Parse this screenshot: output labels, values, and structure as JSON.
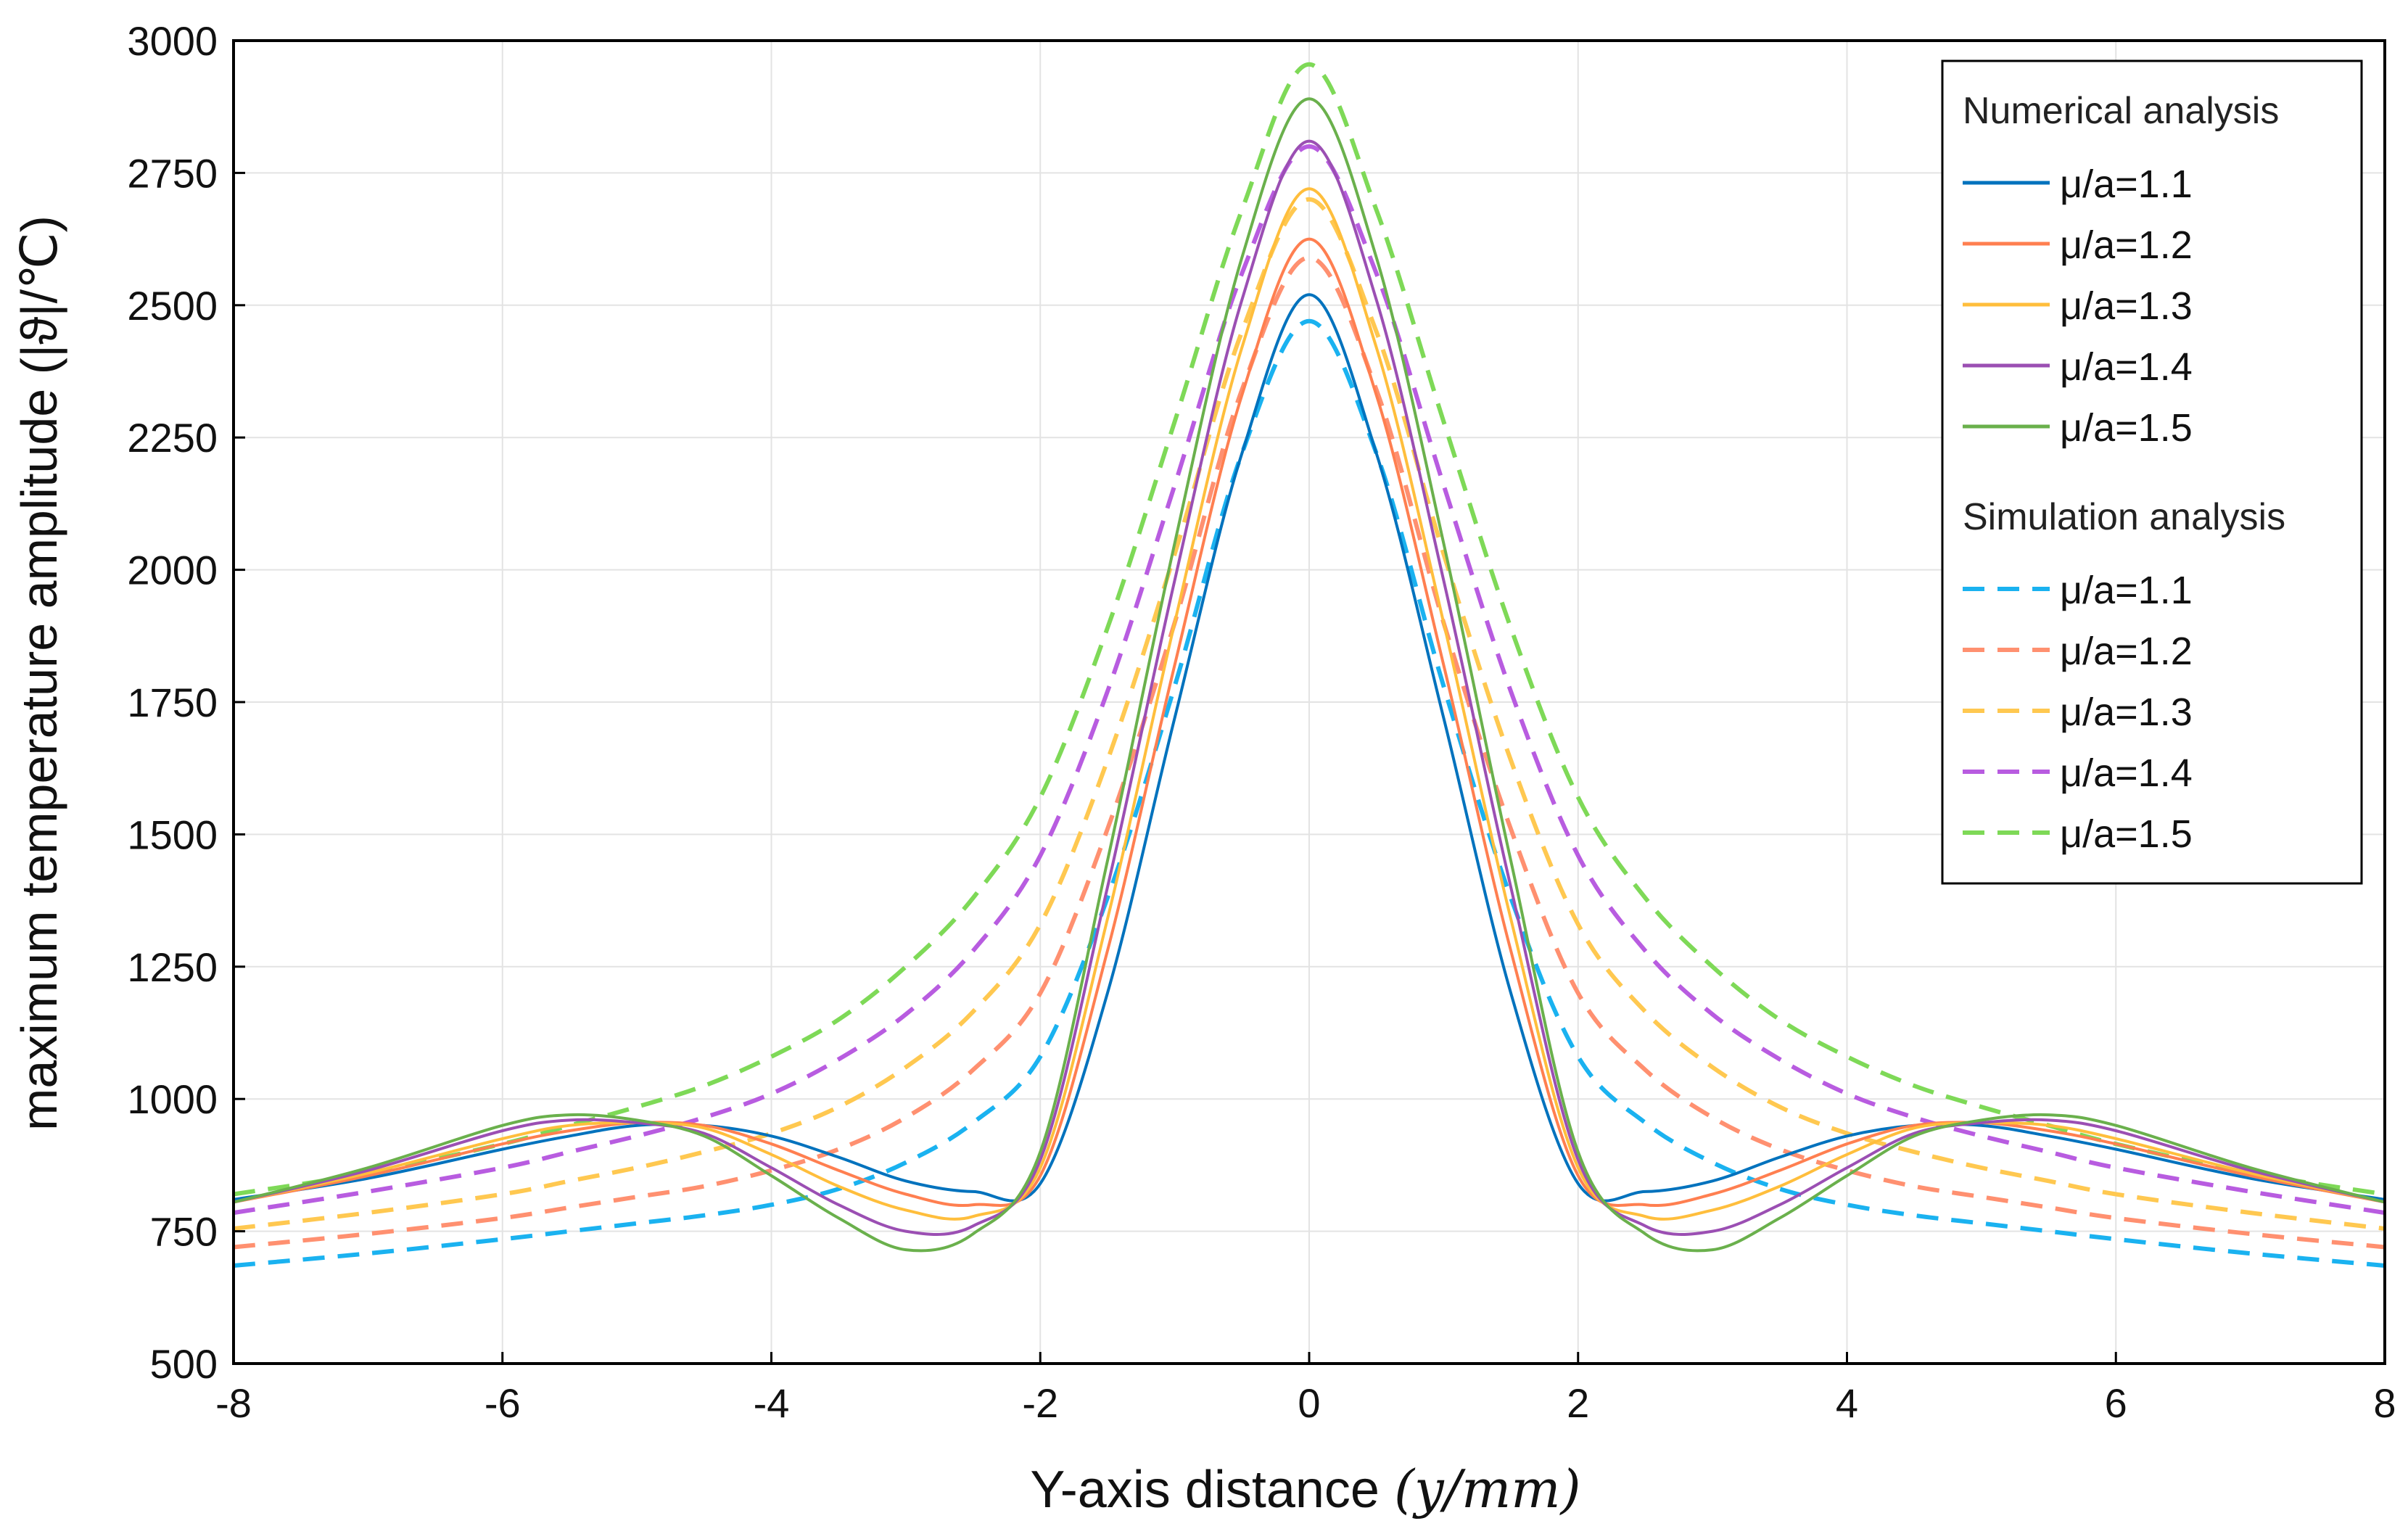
{
  "chart_data": {
    "type": "line",
    "title": "",
    "xlabel": "Y-axis distance (y/mm)",
    "xlabel_prefix": "Y-axis distance",
    "xlabel_math": "(𝑦/𝑚𝑚)",
    "ylabel": "maximum temperature amplitude (|ϑ|/℃)",
    "xlim": [
      -8,
      8
    ],
    "ylim": [
      500,
      3000
    ],
    "xticks": [
      -8,
      -6,
      -4,
      -2,
      0,
      2,
      4,
      6,
      8
    ],
    "xtick_labels": [
      "-8",
      "-6",
      "-4",
      "-2",
      "0",
      "2",
      "4",
      "6",
      "8"
    ],
    "yticks": [
      500,
      750,
      1000,
      1250,
      1500,
      1750,
      2000,
      2250,
      2500,
      2750,
      3000
    ],
    "ytick_labels": [
      "500",
      "750",
      "1000",
      "1250",
      "1500",
      "1750",
      "2000",
      "2250",
      "2500",
      "2750",
      "3000"
    ],
    "grid": true,
    "legend_position": "top-right",
    "legend_groups": [
      {
        "heading": "Numerical analysis",
        "style": "solid"
      },
      {
        "heading": "Simulation analysis",
        "style": "dashed"
      }
    ],
    "x": [
      -8,
      -7,
      -6,
      -5.5,
      -5,
      -4.5,
      -4,
      -3.5,
      -3,
      -2.5,
      -2,
      -1.5,
      -1,
      -0.5,
      0,
      0.5,
      1,
      1.5,
      2,
      2.5,
      3,
      3.5,
      4,
      4.5,
      5,
      5.5,
      6,
      7,
      8
    ],
    "series": [
      {
        "name": "μ/a=1.1",
        "group": "Numerical analysis",
        "style": "solid",
        "color": "#0072bd",
        "values": [
          810,
          850,
          905,
          930,
          950,
          950,
          930,
          890,
          845,
          825,
          840,
          1200,
          1720,
          2220,
          2520,
          2220,
          1720,
          1200,
          840,
          825,
          845,
          890,
          930,
          950,
          950,
          930,
          905,
          850,
          810
        ]
      },
      {
        "name": "μ/a=1.2",
        "group": "Numerical analysis",
        "style": "solid",
        "color": "#ff7f50",
        "values": [
          805,
          855,
          915,
          940,
          955,
          950,
          915,
          865,
          820,
          800,
          855,
          1280,
          1820,
          2330,
          2625,
          2330,
          1820,
          1280,
          855,
          800,
          820,
          865,
          915,
          950,
          955,
          940,
          915,
          855,
          805
        ]
      },
      {
        "name": "μ/a=1.3",
        "group": "Numerical analysis",
        "style": "solid",
        "color": "#ffbe3c",
        "values": [
          805,
          860,
          925,
          950,
          955,
          945,
          895,
          835,
          790,
          778,
          870,
          1340,
          1900,
          2420,
          2720,
          2420,
          1900,
          1340,
          870,
          778,
          790,
          835,
          895,
          945,
          955,
          950,
          925,
          860,
          805
        ]
      },
      {
        "name": "μ/a=1.4",
        "group": "Numerical analysis",
        "style": "solid",
        "color": "#9b4fb3",
        "values": [
          805,
          865,
          940,
          960,
          955,
          935,
          870,
          800,
          750,
          760,
          885,
          1400,
          1980,
          2510,
          2810,
          2510,
          1980,
          1400,
          885,
          760,
          750,
          800,
          870,
          935,
          955,
          960,
          940,
          865,
          805
        ]
      },
      {
        "name": "μ/a=1.5",
        "group": "Numerical analysis",
        "style": "solid",
        "color": "#6ab04c",
        "values": [
          805,
          870,
          950,
          970,
          960,
          930,
          855,
          775,
          715,
          745,
          900,
          1450,
          2050,
          2590,
          2890,
          2590,
          2050,
          1450,
          900,
          745,
          715,
          775,
          855,
          930,
          960,
          970,
          950,
          870,
          805
        ]
      },
      {
        "name": "μ/a=1.1",
        "group": "Simulation analysis",
        "style": "dashed",
        "color": "#1ab2f0",
        "values": [
          685,
          708,
          735,
          750,
          765,
          780,
          800,
          830,
          880,
          955,
          1080,
          1380,
          1780,
          2220,
          2470,
          2220,
          1780,
          1380,
          1080,
          955,
          880,
          830,
          800,
          780,
          765,
          750,
          735,
          708,
          685
        ]
      },
      {
        "name": "μ/a=1.2",
        "group": "Simulation analysis",
        "style": "dashed",
        "color": "#ff9070",
        "values": [
          720,
          745,
          775,
          795,
          815,
          835,
          865,
          905,
          965,
          1055,
          1200,
          1510,
          1900,
          2340,
          2590,
          2340,
          1900,
          1510,
          1200,
          1055,
          965,
          905,
          865,
          835,
          815,
          795,
          775,
          745,
          720
        ]
      },
      {
        "name": "μ/a=1.3",
        "group": "Simulation analysis",
        "style": "dashed",
        "color": "#ffc850",
        "values": [
          755,
          785,
          820,
          845,
          870,
          900,
          935,
          985,
          1060,
          1165,
          1330,
          1640,
          2030,
          2450,
          2700,
          2450,
          2030,
          1640,
          1330,
          1165,
          1060,
          985,
          935,
          900,
          870,
          845,
          820,
          785,
          755
        ]
      },
      {
        "name": "μ/a=1.4",
        "group": "Simulation analysis",
        "style": "dashed",
        "color": "#b85ce0",
        "values": [
          785,
          825,
          870,
          900,
          930,
          965,
          1010,
          1075,
          1160,
          1280,
          1460,
          1770,
          2160,
          2560,
          2800,
          2560,
          2160,
          1770,
          1460,
          1280,
          1160,
          1075,
          1010,
          965,
          930,
          900,
          870,
          825,
          785
        ]
      },
      {
        "name": "μ/a=1.5",
        "group": "Simulation analysis",
        "style": "dashed",
        "color": "#7ed957",
        "values": [
          820,
          860,
          915,
          950,
          985,
          1025,
          1080,
          1150,
          1250,
          1380,
          1570,
          1890,
          2280,
          2680,
          2955,
          2680,
          2280,
          1890,
          1570,
          1380,
          1250,
          1150,
          1080,
          1025,
          985,
          950,
          915,
          860,
          820
        ]
      }
    ]
  }
}
